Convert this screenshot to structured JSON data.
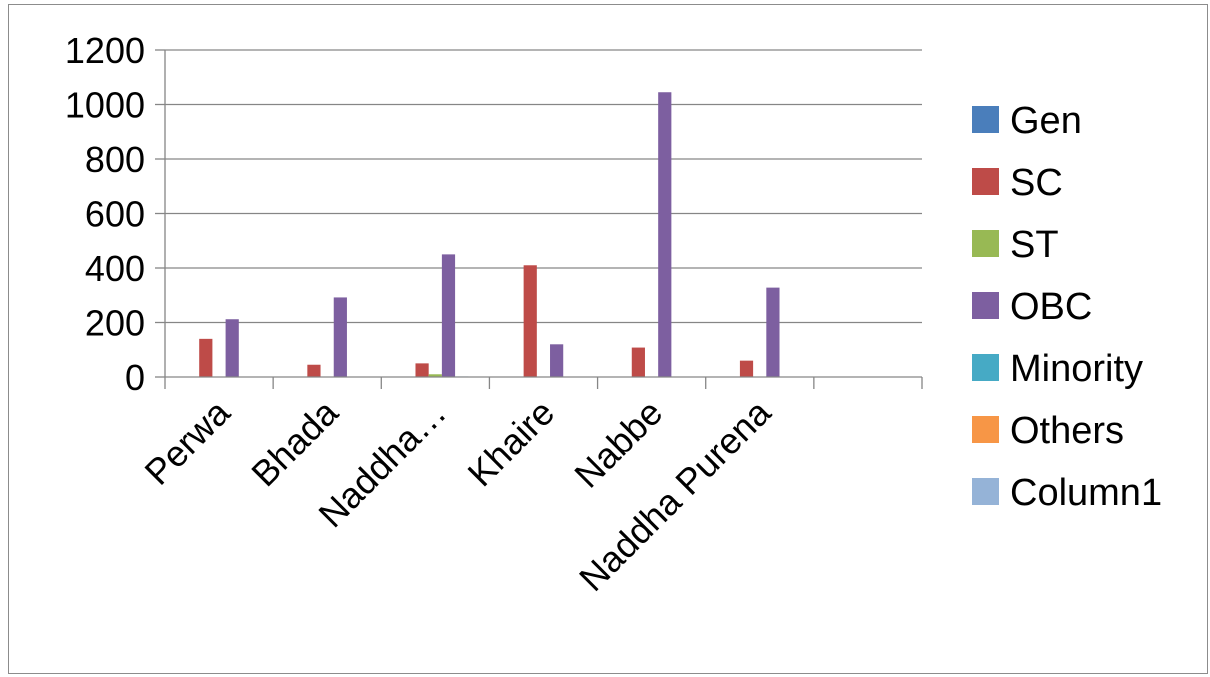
{
  "chart_data": {
    "type": "bar",
    "categories": [
      "Perwa",
      "Bhada",
      "Naddha…",
      "Khaire",
      "Nabbe",
      "Naddha Purena",
      ""
    ],
    "series": [
      {
        "name": "Gen",
        "color": "#4A7EBB",
        "values": [
          0,
          0,
          0,
          0,
          0,
          0,
          0
        ]
      },
      {
        "name": "SC",
        "color": "#BE4B48",
        "values": [
          140,
          45,
          50,
          410,
          108,
          60,
          0
        ]
      },
      {
        "name": "ST",
        "color": "#98B954",
        "values": [
          0,
          0,
          10,
          0,
          0,
          0,
          0
        ]
      },
      {
        "name": "OBC",
        "color": "#7D5FA0",
        "values": [
          212,
          292,
          450,
          120,
          1045,
          328,
          0
        ]
      },
      {
        "name": "Minority",
        "color": "#46AAC5",
        "values": [
          0,
          0,
          2,
          0,
          0,
          0,
          0
        ]
      },
      {
        "name": "Others",
        "color": "#F79646",
        "values": [
          0,
          0,
          0,
          0,
          0,
          0,
          0
        ]
      },
      {
        "name": "Column1",
        "color": "#95B3D7",
        "values": [
          0,
          0,
          0,
          0,
          0,
          0,
          0
        ]
      }
    ],
    "y_ticks": [
      "0",
      "200",
      "400",
      "600",
      "800",
      "1000",
      "1200"
    ],
    "ylim": [
      0,
      1200
    ],
    "grid": true,
    "legend": "right"
  }
}
